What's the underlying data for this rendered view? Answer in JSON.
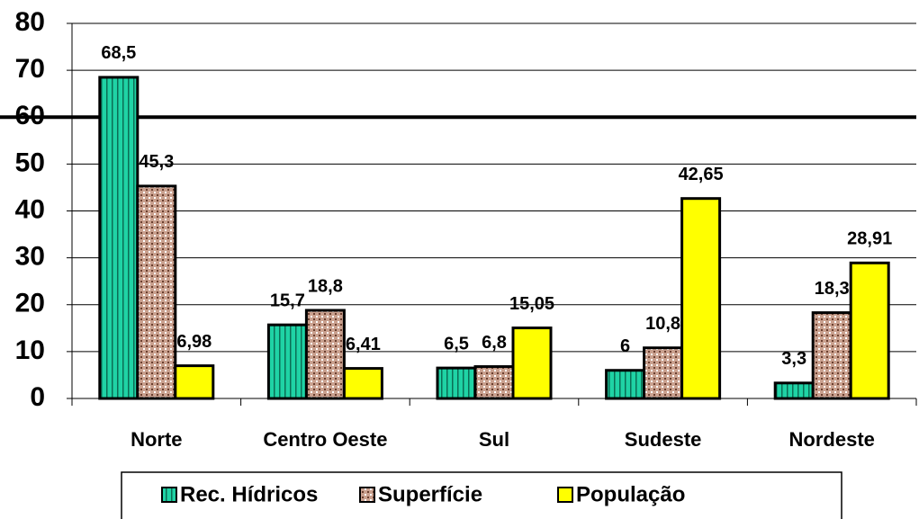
{
  "chart_data": {
    "type": "bar",
    "categories": [
      "Norte",
      "Centro Oeste",
      "Sul",
      "Sudeste",
      "Nordeste"
    ],
    "series": [
      {
        "name": "Rec. Hídricos",
        "color": "#1fd3a5",
        "pattern": "stripes",
        "values": [
          68.5,
          15.7,
          6.5,
          6,
          3.3
        ],
        "value_labels": [
          "68,5",
          "15,7",
          "6,5",
          "6",
          "3,3"
        ]
      },
      {
        "name": "Superfície",
        "color": "#c9a08e",
        "pattern": "dots",
        "values": [
          45.3,
          18.8,
          6.8,
          10.8,
          18.3
        ],
        "value_labels": [
          "45,3",
          "18,8",
          "6,8",
          "10,8",
          "18,3"
        ]
      },
      {
        "name": "População",
        "color": "#ffff00",
        "values": [
          6.98,
          6.41,
          15.05,
          42.65,
          28.91
        ],
        "value_labels": [
          "6,98",
          "6,41",
          "15,05",
          "42,65",
          "28,91"
        ]
      }
    ],
    "ylim": [
      0,
      80
    ],
    "yticks": [
      0,
      10,
      20,
      30,
      40,
      50,
      60,
      70,
      80
    ],
    "grid": true,
    "reference_line": 60,
    "legend": "bottom"
  }
}
